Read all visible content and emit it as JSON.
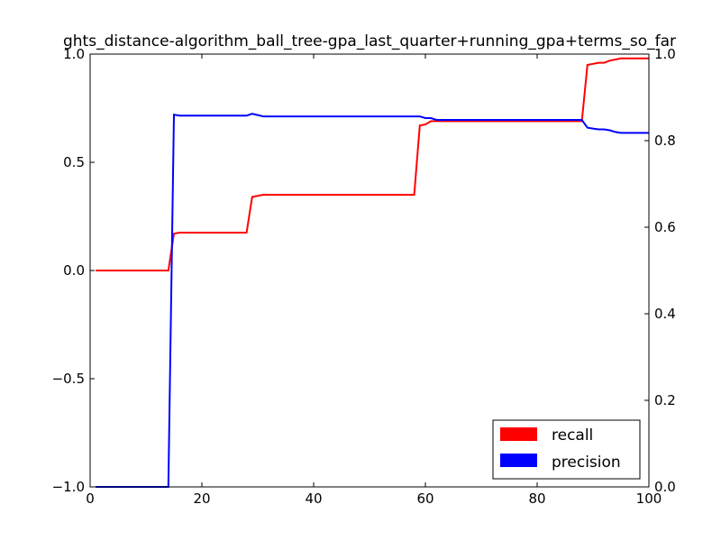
{
  "chart_data": {
    "type": "line",
    "title": "ghts_distance-algorithm_ball_tree-gpa_last_quarter+running_gpa+terms_so_far",
    "xlabel": "",
    "ylabel": "",
    "xlim": [
      0,
      100
    ],
    "ylim_left": [
      -1.0,
      1.0
    ],
    "ylim_right": [
      0.0,
      1.0
    ],
    "x_ticks": [
      "0",
      "20",
      "40",
      "60",
      "80",
      "100"
    ],
    "y_ticks_left": [
      "−1.0",
      "−0.5",
      "0.0",
      "0.5",
      "1.0"
    ],
    "y_ticks_right": [
      "0.0",
      "0.2",
      "0.4",
      "0.6",
      "0.8",
      "1.0"
    ],
    "grid": false,
    "legend_position": "lower-right",
    "series": [
      {
        "name": "recall",
        "color": "#ff0000",
        "axis": "left",
        "x": [
          1,
          14,
          15,
          16,
          28,
          29,
          31,
          58,
          59,
          60,
          61,
          62,
          88,
          89,
          90,
          91,
          92,
          93,
          94,
          95,
          96,
          100
        ],
        "y": [
          0.0,
          0.0,
          0.17,
          0.175,
          0.175,
          0.34,
          0.35,
          0.35,
          0.67,
          0.675,
          0.69,
          0.69,
          0.69,
          0.95,
          0.955,
          0.96,
          0.96,
          0.97,
          0.975,
          0.98,
          0.98,
          0.98
        ]
      },
      {
        "name": "precision",
        "color": "#0000ff",
        "axis": "right",
        "x": [
          1,
          14,
          15,
          16,
          28,
          29,
          31,
          59,
          60,
          61,
          62,
          88,
          89,
          90,
          91,
          92,
          93,
          94,
          95,
          100
        ],
        "y": [
          0.0,
          0.0,
          0.86,
          0.858,
          0.858,
          0.862,
          0.856,
          0.856,
          0.852,
          0.852,
          0.848,
          0.848,
          0.83,
          0.828,
          0.826,
          0.826,
          0.824,
          0.82,
          0.818,
          0.818
        ]
      }
    ]
  }
}
